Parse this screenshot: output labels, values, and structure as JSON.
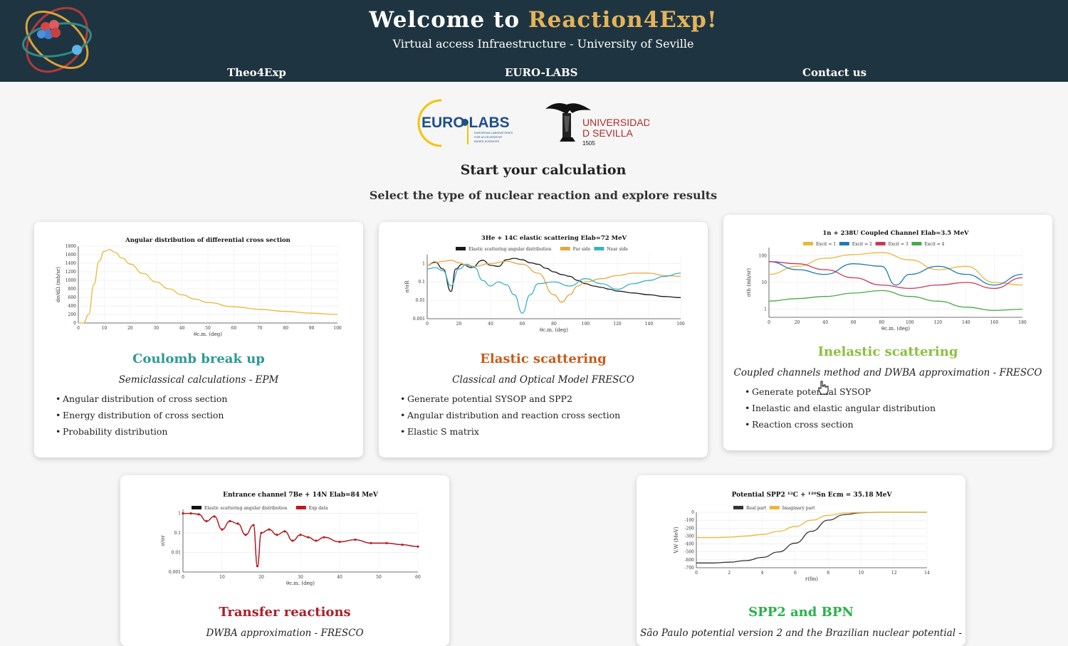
{
  "header": {
    "title_prefix": "Welcome to ",
    "title_accent": "Reaction4Exp!",
    "subtitle": "Virtual access Infraestructure - University of Seville",
    "nav": [
      "Theo4Exp",
      "EURO-LABS",
      "Contact us"
    ],
    "colors": {
      "bar": "#1e3440",
      "accent": "#e4b35a"
    }
  },
  "partners": {
    "eurolabs_text": "EURO LABS",
    "eurolabs_small": [
      "EUROPEAN LABORATORIES",
      "FOR ACCELERATOR",
      "BASED SCIENCES"
    ],
    "us_line1": "UNIVERSIDAD",
    "us_line2": "D SEVILLA",
    "us_year": "1505"
  },
  "intro": {
    "title": "Start your calculation",
    "subtitle": "Select the type of nuclear reaction and explore results"
  },
  "cards": [
    {
      "title": "Coulomb break up",
      "title_color": "#2b9a93",
      "subtitle": "Semiclassical calculations - EPM",
      "bullets": [
        "Angular distribution of cross section",
        "Energy distribution of cross section",
        "Probability distribution"
      ]
    },
    {
      "title": "Elastic scattering",
      "title_color": "#c55c1a",
      "subtitle": "Classical and Optical Model FRESCO",
      "bullets": [
        "Generate potential SYSOP and SPP2",
        "Angular distribution and reaction cross section",
        "Elastic S matrix"
      ]
    },
    {
      "title": "Inelastic scattering",
      "title_color": "#8cbf3f",
      "subtitle": "Coupled channels method and DWBA approximation - FRESCO",
      "bullets": [
        "Generate potential SYSOP",
        "Inelastic and elastic angular distribution",
        "Reaction cross section"
      ]
    },
    {
      "title": "Transfer reactions",
      "title_color": "#a8202b",
      "subtitle": "DWBA approximation - FRESCO",
      "bullets": []
    },
    {
      "title": "SPP2 and BPN",
      "title_color": "#2bb14a",
      "subtitle": "São Paulo potential version 2 and the Brazilian nuclear potential -",
      "bullets": []
    }
  ],
  "chart_data": [
    {
      "type": "line",
      "title": "Angular distribution of differential cross section",
      "xlabel": "θc.m. (deg)",
      "ylabel": "dσ/dΩ (mb/sr)",
      "xlim": [
        0,
        100
      ],
      "ylim": [
        0,
        1800
      ],
      "x_ticks": [
        0,
        10,
        20,
        30,
        40,
        50,
        60,
        70,
        80,
        90,
        100
      ],
      "y_ticks": [
        0,
        200,
        400,
        600,
        800,
        1000,
        1200,
        1400,
        1600,
        1800
      ],
      "series": [
        {
          "color": "#e8b83a",
          "x": [
            0,
            2,
            4,
            6,
            8,
            10,
            12,
            14,
            17,
            20,
            25,
            30,
            35,
            40,
            45,
            50,
            60,
            70,
            80,
            90,
            100
          ],
          "y": [
            0,
            0,
            200,
            900,
            1450,
            1680,
            1720,
            1660,
            1520,
            1380,
            1160,
            960,
            800,
            660,
            560,
            480,
            380,
            320,
            270,
            230,
            200
          ]
        }
      ]
    },
    {
      "type": "line",
      "title": "3He + 14C elastic scattering Elab=72 MeV",
      "xlabel": "θc.m. (deg)",
      "ylabel": "σ/σR",
      "xlim": [
        0,
        160
      ],
      "y_ticks": [
        "1",
        "0.1",
        "0.01",
        "0.001"
      ],
      "x_ticks": [
        0,
        20,
        40,
        60,
        80,
        100,
        120,
        140,
        160
      ],
      "legend": [
        "Elastic scattering angular distribution",
        "Far side",
        "Near side"
      ],
      "series": [
        {
          "name": "Elastic scattering angular distribution",
          "color": "#1a1a1a",
          "x": [
            0,
            5,
            10,
            15,
            18,
            22,
            28,
            35,
            40,
            45,
            50,
            55,
            60,
            65,
            70,
            75,
            80,
            85,
            90,
            95,
            100,
            105,
            110,
            115,
            120,
            130,
            140,
            150,
            160
          ],
          "y": [
            0.8,
            1.2,
            0.5,
            0.03,
            0.5,
            0.9,
            0.6,
            1.5,
            0.8,
            0.7,
            1.6,
            1.9,
            1.6,
            1.1,
            0.9,
            0.55,
            0.35,
            0.25,
            0.2,
            0.12,
            0.08,
            0.06,
            0.05,
            0.04,
            0.032,
            0.025,
            0.02,
            0.016,
            0.014
          ]
        },
        {
          "name": "Far side",
          "color": "#e8a63a",
          "x": [
            0,
            5,
            10,
            15,
            20,
            25,
            30,
            40,
            50,
            60,
            70,
            80,
            85,
            90,
            95,
            100,
            110,
            120,
            130,
            140,
            150,
            160
          ],
          "y": [
            0.8,
            1.1,
            1.3,
            1.5,
            1.1,
            0.8,
            0.7,
            1.0,
            1.3,
            0.9,
            0.3,
            0.02,
            0.008,
            0.02,
            0.06,
            0.1,
            0.15,
            0.22,
            0.3,
            0.3,
            0.22,
            0.2
          ]
        },
        {
          "name": "Near side",
          "color": "#3ab0c8",
          "x": [
            0,
            5,
            10,
            15,
            20,
            25,
            30,
            35,
            40,
            45,
            50,
            55,
            60,
            65,
            70,
            80,
            90,
            100,
            110,
            120,
            130,
            140,
            150,
            160
          ],
          "y": [
            0.5,
            0.6,
            0.4,
            0.06,
            0.5,
            0.9,
            0.6,
            0.12,
            0.06,
            0.1,
            0.07,
            0.02,
            0.002,
            0.02,
            0.08,
            0.1,
            0.06,
            0.15,
            0.08,
            0.04,
            0.08,
            0.12,
            0.2,
            0.3
          ]
        }
      ]
    },
    {
      "type": "line",
      "title": "1n + 238U Coupled Channel Elab=3.5 MeV",
      "xlabel": "θc.m. (deg)",
      "ylabel": "σth (mb/sr)",
      "xlim": [
        0,
        180
      ],
      "y_ticks": [
        "100",
        "10",
        "1"
      ],
      "x_ticks": [
        0,
        20,
        40,
        60,
        80,
        100,
        120,
        140,
        160,
        180
      ],
      "legend": [
        "Excit = 1",
        "Excit = 2",
        "Excit = 3",
        "Excit = 4"
      ],
      "series": [
        {
          "name": "Excit = 1",
          "color": "#e8b83a",
          "x": [
            0,
            20,
            40,
            60,
            80,
            100,
            120,
            140,
            160,
            180
          ],
          "y": [
            20,
            40,
            80,
            110,
            130,
            70,
            30,
            40,
            10,
            8
          ]
        },
        {
          "name": "Excit = 2",
          "color": "#1f7ab8",
          "x": [
            0,
            20,
            40,
            60,
            80,
            90,
            100,
            120,
            140,
            160,
            180
          ],
          "y": [
            60,
            30,
            20,
            50,
            40,
            8,
            20,
            40,
            20,
            8,
            20
          ]
        },
        {
          "name": "Excit = 3",
          "color": "#c83a58",
          "x": [
            0,
            20,
            40,
            60,
            80,
            100,
            120,
            140,
            160,
            180
          ],
          "y": [
            60,
            50,
            30,
            15,
            8,
            6,
            8,
            10,
            6,
            15
          ]
        },
        {
          "name": "Excit = 4",
          "color": "#4aa84a",
          "x": [
            0,
            20,
            40,
            60,
            80,
            100,
            120,
            140,
            160,
            180
          ],
          "y": [
            2,
            2.5,
            3,
            4,
            5,
            3,
            2,
            1.2,
            0.9,
            1
          ]
        }
      ]
    },
    {
      "type": "line",
      "title": "Entrance channel 7Be + 14N Elab=84 MeV",
      "xlabel": "θc.m. (deg)",
      "ylabel": "σ/σr",
      "xlim": [
        0,
        60
      ],
      "y_ticks": [
        "1",
        "0.1",
        "0.01",
        "0.001"
      ],
      "x_ticks": [
        0,
        10,
        20,
        30,
        40,
        50,
        60
      ],
      "legend": [
        "Elastic scattering angular distribution",
        "Exp data"
      ],
      "series": [
        {
          "name": "Elastic scattering angular distribution",
          "color": "#111111",
          "x": [
            0,
            2,
            4,
            6,
            8,
            10,
            12,
            14,
            16,
            18,
            19,
            20,
            22,
            24,
            26,
            28,
            30,
            32,
            34,
            36,
            40,
            44,
            48,
            52,
            56,
            60
          ],
          "y": [
            1,
            1,
            0.9,
            0.4,
            0.7,
            0.15,
            0.4,
            0.3,
            0.08,
            0.25,
            0.002,
            0.1,
            0.15,
            0.08,
            0.12,
            0.04,
            0.08,
            0.06,
            0.04,
            0.06,
            0.035,
            0.045,
            0.03,
            0.03,
            0.025,
            0.02
          ]
        },
        {
          "name": "Exp data",
          "color": "#c0181f",
          "x": [
            0,
            2,
            4,
            6,
            8,
            10,
            12,
            14,
            16,
            18,
            19,
            20,
            22,
            24,
            26,
            28,
            30,
            32,
            34,
            36,
            40,
            44,
            48,
            52,
            56,
            60
          ],
          "y": [
            1,
            1,
            0.9,
            0.4,
            0.7,
            0.15,
            0.4,
            0.3,
            0.08,
            0.25,
            0.002,
            0.1,
            0.15,
            0.08,
            0.12,
            0.04,
            0.08,
            0.06,
            0.04,
            0.06,
            0.035,
            0.045,
            0.03,
            0.03,
            0.025,
            0.02
          ]
        }
      ]
    },
    {
      "type": "line",
      "title": "Potential SPP2 ¹²C + ¹²⁰Sn Ecm = 35.18 MeV",
      "xlabel": "r(fm)",
      "ylabel": "V,W (MeV)",
      "xlim": [
        0,
        14
      ],
      "ylim": [
        -700,
        0
      ],
      "x_ticks": [
        0,
        2,
        4,
        6,
        8,
        10,
        12,
        14
      ],
      "y_ticks": [
        0,
        -100,
        -200,
        -300,
        -400,
        -500,
        -600,
        -700
      ],
      "legend": [
        "Real part",
        "Imaginary part"
      ],
      "series": [
        {
          "name": "Real part",
          "color": "#333333",
          "x": [
            0,
            1,
            2,
            3,
            4,
            5,
            6,
            7,
            8,
            9,
            10,
            11,
            12,
            13,
            14
          ],
          "y": [
            -640,
            -640,
            -630,
            -610,
            -570,
            -500,
            -390,
            -240,
            -100,
            -30,
            -5,
            0,
            0,
            0,
            0
          ]
        },
        {
          "name": "Imaginary part",
          "color": "#e8b83a",
          "x": [
            0,
            1,
            2,
            3,
            4,
            5,
            6,
            7,
            8,
            9,
            10,
            11,
            12,
            13,
            14
          ],
          "y": [
            -320,
            -320,
            -315,
            -300,
            -280,
            -240,
            -180,
            -100,
            -40,
            -10,
            -2,
            0,
            0,
            0,
            0
          ]
        }
      ]
    }
  ]
}
